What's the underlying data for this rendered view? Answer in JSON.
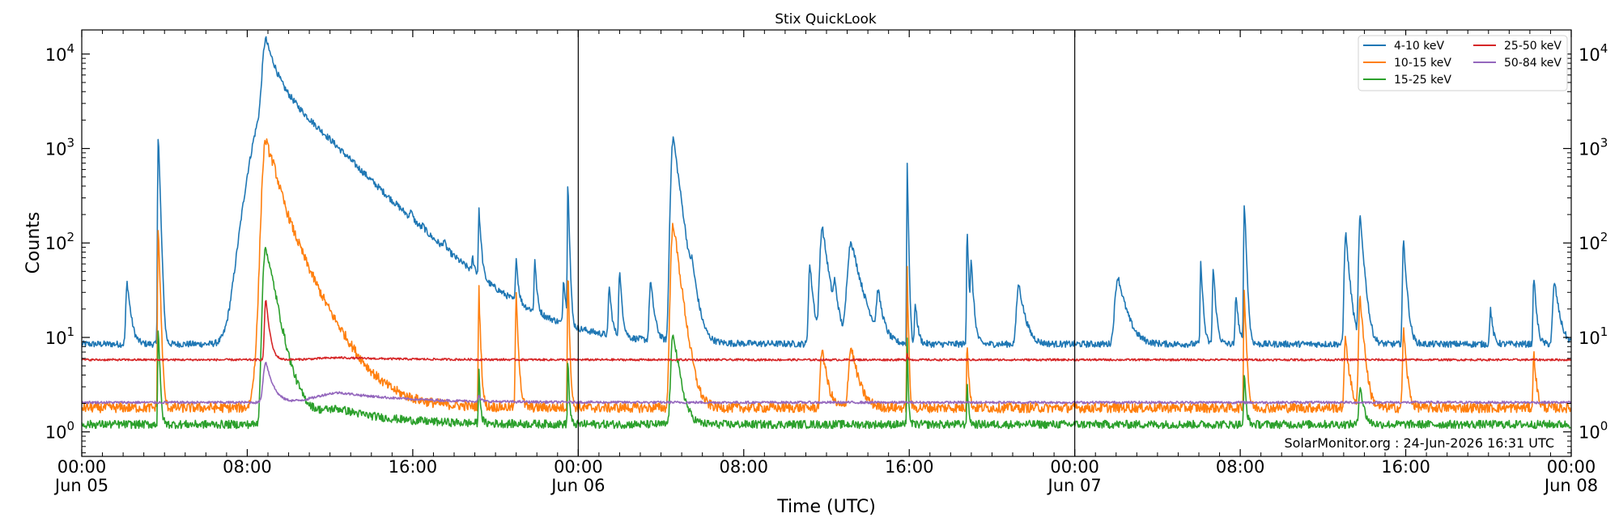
{
  "chart_data": {
    "type": "line",
    "title": "Stix QuickLook",
    "xlabel": "Time (UTC)",
    "ylabel": "Counts",
    "yscale": "log",
    "ylim": [
      0.55,
      18000
    ],
    "xlim_hours": [
      0,
      72
    ],
    "grid": false,
    "legend_position": "top-right",
    "credit": "SolarMonitor.org : 24-Jun-2026 16:31 UTC",
    "day_dividers_hours": [
      24,
      48
    ],
    "x_ticks": [
      {
        "hour": 0,
        "line1": "00:00",
        "line2": "Jun 05"
      },
      {
        "hour": 8,
        "line1": "08:00",
        "line2": ""
      },
      {
        "hour": 16,
        "line1": "16:00",
        "line2": ""
      },
      {
        "hour": 24,
        "line1": "00:00",
        "line2": "Jun 06"
      },
      {
        "hour": 32,
        "line1": "08:00",
        "line2": ""
      },
      {
        "hour": 40,
        "line1": "16:00",
        "line2": ""
      },
      {
        "hour": 48,
        "line1": "00:00",
        "line2": "Jun 07"
      },
      {
        "hour": 56,
        "line1": "08:00",
        "line2": ""
      },
      {
        "hour": 64,
        "line1": "16:00",
        "line2": ""
      },
      {
        "hour": 72,
        "line1": "00:00",
        "line2": "Jun 08"
      }
    ],
    "y_ticks": [
      {
        "value": 1,
        "base": "10",
        "exp": "0"
      },
      {
        "value": 10,
        "base": "10",
        "exp": "1"
      },
      {
        "value": 100,
        "base": "10",
        "exp": "2"
      },
      {
        "value": 1000,
        "base": "10",
        "exp": "3"
      },
      {
        "value": 10000,
        "base": "10",
        "exp": "4"
      }
    ],
    "series": [
      {
        "name": "4-10 keV",
        "color": "#1f77b4",
        "baseline": 8.5,
        "noise": 0.08,
        "peaks": [
          [
            2.2,
            30,
            0.15
          ],
          [
            3.7,
            1500,
            0.06
          ],
          [
            8.0,
            12,
            0.1
          ],
          [
            8.3,
            30,
            0.08
          ],
          [
            8.7,
            30,
            0.08
          ],
          [
            8.9,
            11000,
            0.35
          ],
          [
            9.3,
            4000,
            1.8
          ],
          [
            10.2,
            600,
            2.5
          ],
          [
            12.0,
            60,
            2.5
          ],
          [
            15.9,
            50,
            0.08
          ],
          [
            16.5,
            15,
            0.1
          ],
          [
            17.5,
            20,
            0.1
          ],
          [
            18.9,
            20,
            0.1
          ],
          [
            19.3,
            30,
            0.1
          ],
          [
            19.2,
            200,
            0.06
          ],
          [
            21.0,
            50,
            0.08
          ],
          [
            21.9,
            50,
            0.08
          ],
          [
            23.3,
            28,
            0.1
          ],
          [
            23.5,
            480,
            0.05
          ],
          [
            25.5,
            25,
            0.1
          ],
          [
            26.0,
            40,
            0.1
          ],
          [
            27.5,
            30,
            0.15
          ],
          [
            28.6,
            1300,
            0.25
          ],
          [
            29.5,
            25,
            0.2
          ],
          [
            35.2,
            50,
            0.15
          ],
          [
            35.8,
            140,
            0.25
          ],
          [
            36.4,
            20,
            0.15
          ],
          [
            37.2,
            95,
            0.4
          ],
          [
            38.5,
            20,
            0.2
          ],
          [
            39.9,
            700,
            0.04
          ],
          [
            40.3,
            15,
            0.1
          ],
          [
            42.8,
            140,
            0.06
          ],
          [
            43.0,
            50,
            0.1
          ],
          [
            45.3,
            28,
            0.25
          ],
          [
            50.1,
            35,
            0.35
          ],
          [
            54.1,
            55,
            0.08
          ],
          [
            54.7,
            45,
            0.1
          ],
          [
            55.8,
            20,
            0.1
          ],
          [
            56.2,
            280,
            0.07
          ],
          [
            61.1,
            120,
            0.15
          ],
          [
            61.8,
            180,
            0.15
          ],
          [
            63.9,
            95,
            0.12
          ],
          [
            68.1,
            12,
            0.1
          ],
          [
            70.2,
            35,
            0.1
          ],
          [
            71.2,
            30,
            0.2
          ]
        ]
      },
      {
        "name": "10-15 keV",
        "color": "#ff7f0e",
        "baseline": 1.8,
        "noise": 0.12,
        "peaks": [
          [
            3.7,
            150,
            0.06
          ],
          [
            8.9,
            1100,
            0.35
          ],
          [
            9.3,
            300,
            0.9
          ],
          [
            10.5,
            5,
            1.5
          ],
          [
            12.8,
            0.9,
            2.0
          ],
          [
            19.2,
            30,
            0.06
          ],
          [
            21.0,
            25,
            0.08
          ],
          [
            23.5,
            50,
            0.05
          ],
          [
            28.6,
            160,
            0.25
          ],
          [
            35.8,
            6,
            0.2
          ],
          [
            37.2,
            6,
            0.3
          ],
          [
            39.9,
            50,
            0.04
          ],
          [
            42.8,
            8,
            0.06
          ],
          [
            56.2,
            30,
            0.07
          ],
          [
            61.1,
            8,
            0.15
          ],
          [
            61.8,
            25,
            0.15
          ],
          [
            63.9,
            10,
            0.12
          ],
          [
            70.2,
            5,
            0.1
          ]
        ]
      },
      {
        "name": "15-25 keV",
        "color": "#2ca02c",
        "baseline": 1.2,
        "noise": 0.1,
        "peaks": [
          [
            3.7,
            12,
            0.06
          ],
          [
            8.9,
            90,
            0.3
          ],
          [
            9.3,
            10,
            0.6
          ],
          [
            12.5,
            0.5,
            2.5
          ],
          [
            19.2,
            3,
            0.06
          ],
          [
            23.5,
            5,
            0.05
          ],
          [
            28.6,
            10,
            0.25
          ],
          [
            39.9,
            8,
            0.04
          ],
          [
            42.8,
            2,
            0.06
          ],
          [
            56.2,
            3,
            0.07
          ],
          [
            61.8,
            2,
            0.15
          ]
        ]
      },
      {
        "name": "25-50 keV",
        "color": "#d62728",
        "baseline": 5.8,
        "noise": 0.025,
        "peaks": [
          [
            8.9,
            20,
            0.15
          ],
          [
            39.9,
            1,
            0.04
          ],
          [
            12.5,
            0.3,
            3.0
          ]
        ]
      },
      {
        "name": "50-84 keV",
        "color": "#9467bd",
        "baseline": 2.05,
        "noise": 0.03,
        "peaks": [
          [
            8.9,
            3.5,
            0.3
          ],
          [
            12.5,
            0.55,
            3.0
          ],
          [
            19.2,
            0.3,
            0.1
          ]
        ]
      }
    ]
  }
}
